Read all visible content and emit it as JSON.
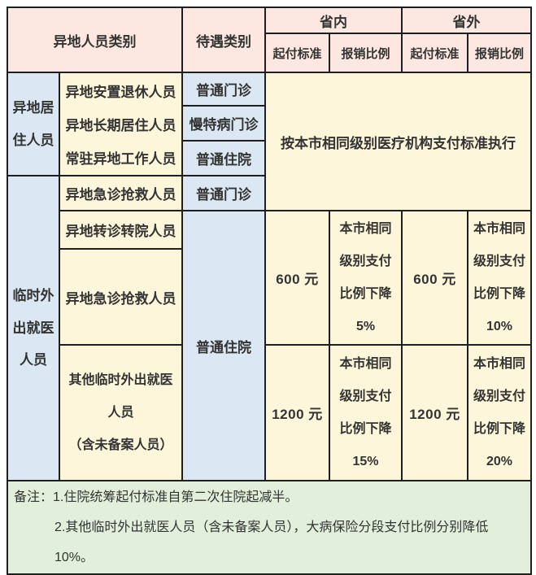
{
  "colors": {
    "header_pink": "#fce8e0",
    "cell_blue": "#dbe8f3",
    "cell_cream": "#fdf6da",
    "notes_green": "#e2efda",
    "border": "#1f1f1f",
    "text": "#333333"
  },
  "header": {
    "person_category": "异地人员类别",
    "treatment_category": "待遇类别",
    "in_province": "省内",
    "out_province": "省外",
    "deductible": "起付标准",
    "reimbursement": "报销比例"
  },
  "resident_group": {
    "label": "异地居\n住人员",
    "members": [
      "异地安置退休人员",
      "异地长期居住人员",
      "常驻异地工作人员"
    ],
    "treatments": [
      "普通门诊",
      "慢特病门诊",
      "普通住院"
    ],
    "policy": "按本市相同级别医疗机构支付标准执行"
  },
  "temporary_group": {
    "label": "临时外\n出就医\n人员",
    "emergency_outpatient_row": {
      "member": "异地急诊抢救人员",
      "treatment": "普通门诊"
    },
    "referral_member": "异地转诊转院人员",
    "emergency_member": "异地急诊抢救人员",
    "other_member": "其他临时外出就医\n人员\n（含未备案人员）",
    "hospitalization_treatment": "普通住院",
    "tier_600": {
      "in_deductible": "600 元",
      "in_ratio": "本市相同\n级别支付\n比例下降\n5%",
      "out_deductible": "600 元",
      "out_ratio": "本市相同\n级别支付\n比例下降\n10%"
    },
    "tier_1200": {
      "in_deductible": "1200 元",
      "in_ratio": "本市相同\n级别支付\n比例下降\n15%",
      "out_deductible": "1200 元",
      "out_ratio": "本市相同\n级别支付\n比例下降\n20%"
    }
  },
  "notes": {
    "line1": "备注：1.住院统筹起付标准自第二次住院起减半。",
    "line2": "2.其他临时外出就医人员（含未备案人员），大病保险分段支付比例分别降低 10%。"
  }
}
